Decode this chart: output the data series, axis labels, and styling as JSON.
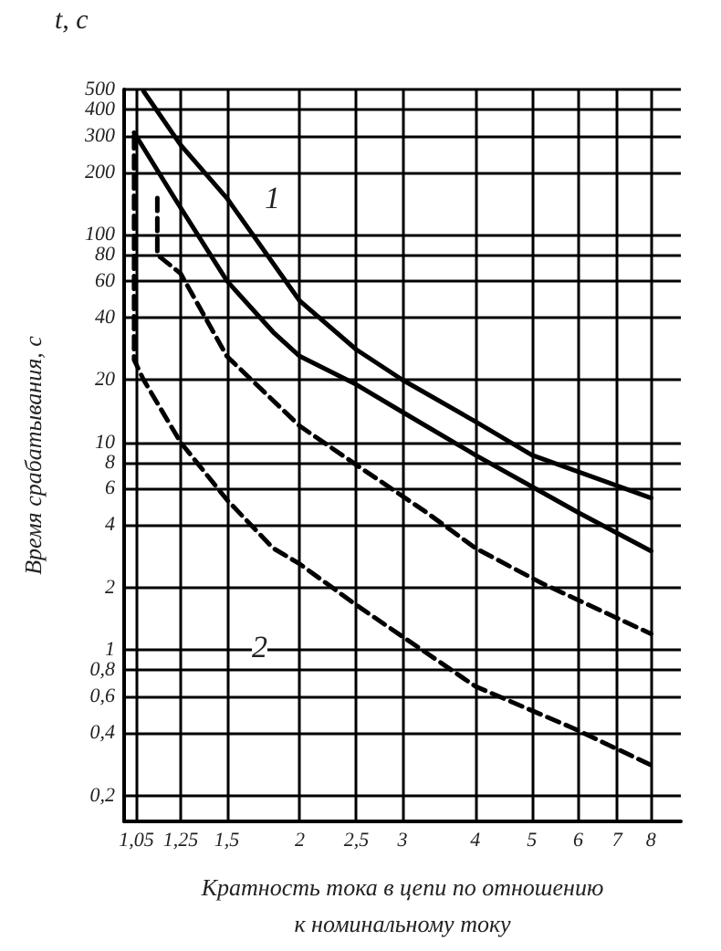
{
  "chart_data": {
    "type": "line",
    "xlabel": "Кратность тока в цепи по отношению\nк номинальному току",
    "ylabel": "Время срабатывания, с",
    "log": "xy",
    "xlim": [
      1,
      9
    ],
    "ylim": [
      0.15,
      500
    ],
    "xticks": [
      {
        "value": 1.05,
        "label": "1,05"
      },
      {
        "value": 1.25,
        "label": "1,25"
      },
      {
        "value": 1.5,
        "label": "1,5"
      },
      2,
      {
        "value": 2.5,
        "label": "2,5"
      },
      3,
      4,
      5,
      6,
      7,
      8
    ],
    "yticks": [
      {
        "value": 0.2,
        "label": "0,2"
      },
      {
        "value": 0.4,
        "label": "0,4"
      },
      {
        "value": 0.6,
        "label": "0,6"
      },
      {
        "value": 0.8,
        "label": "0,8"
      },
      1,
      2,
      4,
      6,
      8,
      10,
      20,
      40,
      60,
      80,
      100,
      200,
      300,
      400,
      500
    ],
    "grid": true,
    "marker": "none",
    "series": [
      {
        "color": "#000000",
        "line_style": "solid",
        "x": [
          1.08,
          1.25,
          1.5,
          2,
          2.5,
          3,
          4,
          5,
          8
        ],
        "values": [
          490,
          270,
          150,
          48,
          28,
          20,
          12.6,
          8.7,
          5.4
        ]
      },
      {
        "color": "#000000",
        "line_style": "solid",
        "x": [
          1.04,
          1.22,
          1.5,
          1.8,
          2,
          2.5,
          3,
          4,
          6,
          8
        ],
        "values": [
          310,
          150,
          60,
          34,
          26,
          19,
          14,
          8.7,
          4.6,
          3
        ]
      },
      {
        "color": "#000000",
        "line_style": "dashed",
        "x": [
          1.14,
          1.14,
          1.25,
          1.5,
          2,
          2.5,
          3.3,
          4,
          5.2,
          8
        ],
        "values": [
          150,
          80,
          65,
          26,
          12,
          7.8,
          4.6,
          3.1,
          2.1,
          1.2
        ]
      },
      {
        "color": "#000000",
        "line_style": "dashed",
        "x": [
          1.04,
          1.04,
          1.08,
          1.25,
          1.5,
          1.8,
          2,
          2.5,
          4,
          5.9,
          8
        ],
        "values": [
          300,
          25,
          20,
          10,
          5.3,
          3.1,
          2.6,
          1.65,
          0.67,
          0.42,
          0.28
        ]
      }
    ],
    "annotations": [
      "t, c",
      "1",
      "2"
    ]
  }
}
